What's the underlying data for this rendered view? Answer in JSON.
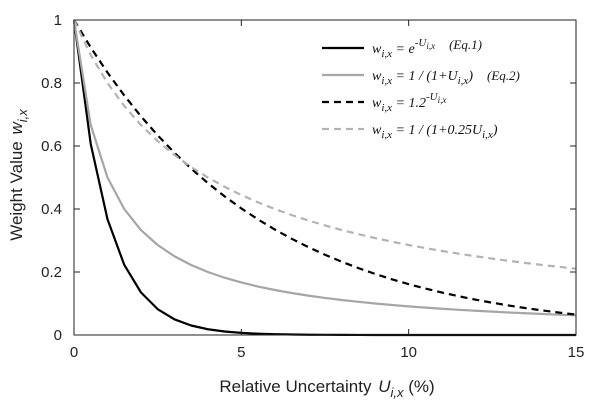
{
  "chart_data": {
    "type": "line",
    "xlabel": "Relative Uncertainty  U_i,x (%)",
    "xlabel_main": "Relative Uncertainty  ",
    "xlabel_symbol": "U",
    "xlabel_subscript": "i,x",
    "xlabel_suffix": " (%)",
    "ylabel": "Weight Value  w_i,x",
    "ylabel_main": "Weight Value  ",
    "ylabel_symbol": "w",
    "ylabel_subscript": "i,x",
    "xlim": [
      0,
      15
    ],
    "ylim": [
      0,
      1
    ],
    "xticks": [
      0,
      5,
      10,
      15
    ],
    "xtick_labels": [
      "0",
      "5",
      "10",
      "15"
    ],
    "yticks": [
      0,
      0.2,
      0.4,
      0.6,
      0.8,
      1
    ],
    "ytick_labels": [
      "0",
      "0.2",
      "0.4",
      "0.6",
      "0.8",
      "1"
    ],
    "grid": false,
    "legend_position": "top-right",
    "x": [
      0,
      0.5,
      1,
      1.5,
      2,
      2.5,
      3,
      3.5,
      4,
      4.5,
      5,
      5.5,
      6,
      6.5,
      7,
      7.5,
      8,
      8.5,
      9,
      9.5,
      10,
      10.5,
      11,
      11.5,
      12,
      12.5,
      13,
      13.5,
      14,
      14.5,
      15
    ],
    "series": [
      {
        "legend_base": "w",
        "legend_sub": "i,x",
        "legend_rhs": " = e",
        "legend_sup": "-U",
        "legend_sup_sub": "i,x",
        "legend_tail": "",
        "legend_eq": "(Eq.1)",
        "color": "#000000",
        "dash": "solid",
        "values": [
          1,
          0.6065,
          0.3679,
          0.2231,
          0.1353,
          0.0821,
          0.0498,
          0.0302,
          0.0183,
          0.0111,
          0.0067,
          0.0041,
          0.0025,
          0.0015,
          0.0009,
          0.0006,
          0.0003,
          0.0002,
          0.0001,
          0.0001,
          0.0,
          0.0,
          0.0,
          0.0,
          0.0,
          0.0,
          0.0,
          0.0,
          0.0,
          0.0,
          0.0
        ]
      },
      {
        "legend_base": "w",
        "legend_sub": "i,x",
        "legend_rhs": " = 1 / (1+U",
        "legend_sup": "",
        "legend_sup_sub": "i,x",
        "legend_tail": ")",
        "legend_eq": "(Eq.2)",
        "color": "#a6a6a6",
        "dash": "solid",
        "values": [
          1,
          0.6667,
          0.5,
          0.4,
          0.3333,
          0.2857,
          0.25,
          0.2222,
          0.2,
          0.1818,
          0.1667,
          0.1538,
          0.1429,
          0.1333,
          0.125,
          0.1176,
          0.1111,
          0.1053,
          0.1,
          0.0952,
          0.0909,
          0.087,
          0.0833,
          0.08,
          0.0769,
          0.0741,
          0.0714,
          0.069,
          0.0667,
          0.0645,
          0.0625
        ]
      },
      {
        "legend_base": "w",
        "legend_sub": "i,x",
        "legend_rhs": " = 1.2",
        "legend_sup": "-U",
        "legend_sup_sub": "i,x",
        "legend_tail": "",
        "legend_eq": "",
        "color": "#000000",
        "dash": "dashed",
        "values": [
          1,
          0.9129,
          0.8333,
          0.7607,
          0.6944,
          0.6339,
          0.5787,
          0.5283,
          0.4823,
          0.4402,
          0.4019,
          0.3669,
          0.3349,
          0.3057,
          0.2791,
          0.2548,
          0.2326,
          0.2123,
          0.1938,
          0.1769,
          0.1615,
          0.1474,
          0.1346,
          0.1229,
          0.1122,
          0.1024,
          0.0935,
          0.0853,
          0.0779,
          0.0711,
          0.0649
        ]
      },
      {
        "legend_base": "w",
        "legend_sub": "i,x",
        "legend_rhs": " = 1 / (1+0.25U",
        "legend_sup": "",
        "legend_sup_sub": "i,x",
        "legend_tail": ")",
        "legend_eq": "",
        "color": "#b3b3b3",
        "dash": "dashed",
        "values": [
          1,
          0.8889,
          0.8,
          0.7273,
          0.6667,
          0.6154,
          0.5714,
          0.5333,
          0.5,
          0.4706,
          0.4444,
          0.4211,
          0.4,
          0.381,
          0.3636,
          0.3478,
          0.3333,
          0.32,
          0.3077,
          0.2963,
          0.2857,
          0.2759,
          0.2667,
          0.2581,
          0.25,
          0.2424,
          0.2353,
          0.2286,
          0.2222,
          0.2162,
          0.2105
        ]
      }
    ]
  }
}
